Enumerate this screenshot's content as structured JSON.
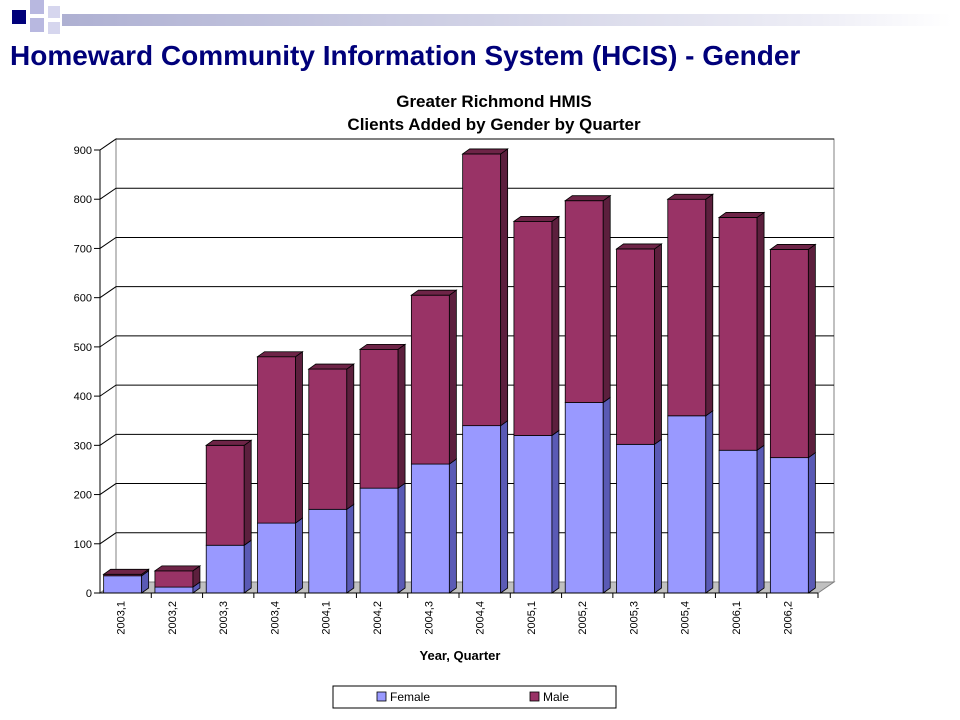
{
  "slide": {
    "title": "Homeward Community Information System (HCIS) - Gender"
  },
  "colors": {
    "title": "#00007a",
    "female": "#9999ff",
    "female_side": "#5a5ab5",
    "female_top": "#c4c4ff",
    "male": "#993366",
    "male_side": "#5c1f3d",
    "male_top": "#6e2447",
    "deco_dark": "#00007a"
  },
  "chart_data": {
    "type": "bar",
    "stacked": true,
    "three_d": true,
    "title": "Greater Richmond HMIS",
    "subtitle": "Clients Added by Gender by Quarter",
    "xlabel": "Year, Quarter",
    "ylabel": "",
    "ylim": [
      0,
      900
    ],
    "yticks": [
      "0",
      "100",
      "200",
      "300",
      "400",
      "500",
      "600",
      "700",
      "800",
      "900"
    ],
    "grid": true,
    "legend_position": "bottom",
    "categories": [
      "2003,1",
      "2003,2",
      "2003,3",
      "2003,4",
      "2004,1",
      "2004,2",
      "2004,3",
      "2004,4",
      "2005,1",
      "2005,2",
      "2005,3",
      "2005,4",
      "2006,1",
      "2006,2"
    ],
    "series": [
      {
        "name": "Female",
        "values": [
          35,
          12,
          97,
          142,
          170,
          213,
          262,
          340,
          320,
          387,
          302,
          360,
          290,
          275
        ]
      },
      {
        "name": "Male",
        "values": [
          3,
          33,
          203,
          338,
          285,
          282,
          343,
          552,
          435,
          410,
          397,
          440,
          473,
          423
        ]
      }
    ]
  }
}
